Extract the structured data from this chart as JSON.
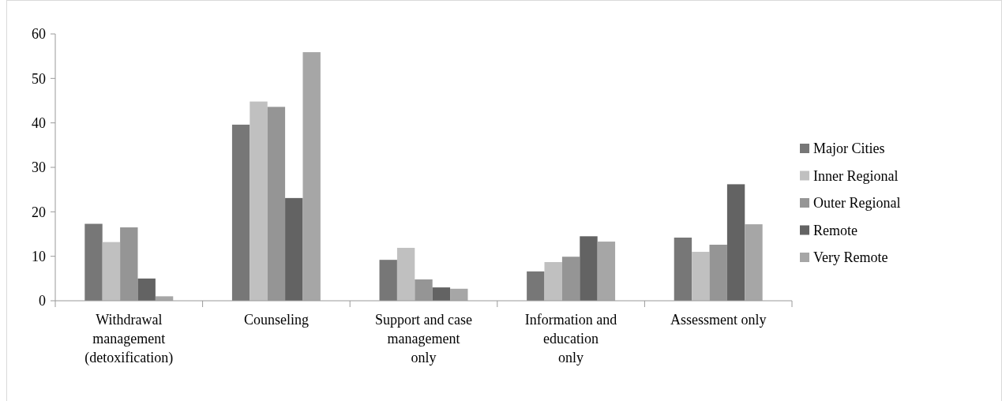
{
  "chart_data": {
    "type": "bar",
    "categories": [
      "Withdrawal\nmanagement\n(detoxification)",
      "Counseling",
      "Support and case\nmanagement\nonly",
      "Information and\neducation\nonly",
      "Assessment only"
    ],
    "series": [
      {
        "name": "Major Cities",
        "color": "#777777",
        "values": [
          17.3,
          39.6,
          9.2,
          6.6,
          14.2
        ]
      },
      {
        "name": "Inner Regional",
        "color": "#c0c0c0",
        "values": [
          13.2,
          44.8,
          11.9,
          8.7,
          11.0
        ]
      },
      {
        "name": "Outer Regional",
        "color": "#959595",
        "values": [
          16.5,
          43.6,
          4.8,
          9.9,
          12.6
        ]
      },
      {
        "name": "Remote",
        "color": "#636363",
        "values": [
          5.0,
          23.1,
          3.0,
          14.5,
          26.2
        ]
      },
      {
        "name": "Very Remote",
        "color": "#a6a6a6",
        "values": [
          1.0,
          55.9,
          2.7,
          13.3,
          17.2
        ]
      }
    ],
    "ylim": [
      0,
      60
    ],
    "yticks": [
      0,
      10,
      20,
      30,
      40,
      50,
      60
    ],
    "grid": false,
    "legend": "right"
  }
}
